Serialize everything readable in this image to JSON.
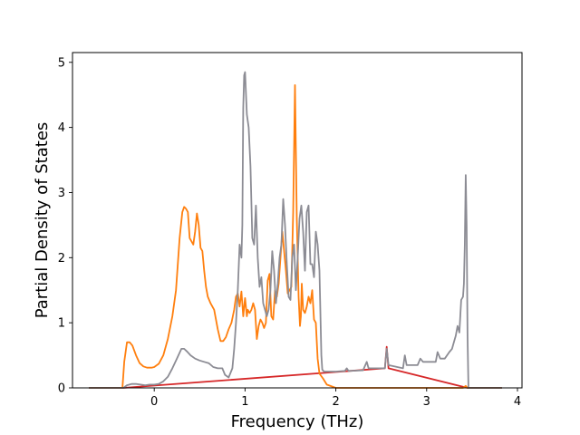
{
  "chart_data": {
    "type": "line",
    "xlabel": "Frequency (THz)",
    "ylabel": "Partial Density of States",
    "xlim": [
      -0.9,
      4.05
    ],
    "ylim": [
      0,
      5.15
    ],
    "xticks": [
      0,
      1,
      2,
      3,
      4
    ],
    "yticks": [
      0,
      1,
      2,
      3,
      4,
      5
    ],
    "grid": false,
    "legend": "none",
    "series": [
      {
        "color": "#d62728",
        "x": [
          -0.72,
          -0.34,
          2.54,
          2.56,
          2.58,
          3.45,
          3.83
        ],
        "y": [
          0.0,
          0.0,
          0.3,
          0.63,
          0.3,
          0.0,
          0.0
        ]
      },
      {
        "color": "#ff7f0e",
        "x": [
          -0.72,
          -0.35,
          -0.33,
          -0.3,
          -0.27,
          -0.24,
          -0.2,
          -0.16,
          -0.12,
          -0.08,
          -0.03,
          0.0,
          0.05,
          0.1,
          0.15,
          0.2,
          0.24,
          0.28,
          0.31,
          0.33,
          0.35,
          0.37,
          0.39,
          0.41,
          0.43,
          0.45,
          0.47,
          0.49,
          0.51,
          0.53,
          0.55,
          0.57,
          0.59,
          0.62,
          0.66,
          0.7,
          0.73,
          0.76,
          0.79,
          0.82,
          0.85,
          0.88,
          0.9,
          0.92,
          0.94,
          0.96,
          0.98,
          1.0,
          1.02,
          1.03,
          1.05,
          1.07,
          1.09,
          1.11,
          1.13,
          1.15,
          1.17,
          1.19,
          1.21,
          1.23,
          1.25,
          1.27,
          1.29,
          1.31,
          1.33,
          1.35,
          1.37,
          1.39,
          1.41,
          1.43,
          1.45,
          1.47,
          1.49,
          1.51,
          1.53,
          1.55,
          1.57,
          1.59,
          1.605,
          1.615,
          1.625,
          1.64,
          1.66,
          1.68,
          1.7,
          1.72,
          1.74,
          1.76,
          1.78,
          1.8,
          1.82,
          1.84,
          1.86,
          1.9,
          2.0,
          3.4,
          3.43,
          3.45,
          3.83
        ],
        "y": [
          0.0,
          0.0,
          0.4,
          0.7,
          0.7,
          0.65,
          0.5,
          0.38,
          0.33,
          0.31,
          0.31,
          0.32,
          0.37,
          0.5,
          0.75,
          1.1,
          1.5,
          2.3,
          2.7,
          2.78,
          2.75,
          2.7,
          2.3,
          2.25,
          2.2,
          2.4,
          2.68,
          2.5,
          2.15,
          2.1,
          1.8,
          1.55,
          1.4,
          1.3,
          1.2,
          0.9,
          0.72,
          0.72,
          0.78,
          0.9,
          1.0,
          1.2,
          1.4,
          1.45,
          1.25,
          1.48,
          1.1,
          1.38,
          1.1,
          1.2,
          1.15,
          1.2,
          1.3,
          1.2,
          0.75,
          0.95,
          1.05,
          1.0,
          0.92,
          1.0,
          1.65,
          1.75,
          1.1,
          1.05,
          1.5,
          1.4,
          1.6,
          2.0,
          2.4,
          2.1,
          1.8,
          1.45,
          1.5,
          1.55,
          2.7,
          4.65,
          2.6,
          1.4,
          0.95,
          1.1,
          1.6,
          1.2,
          1.15,
          1.25,
          1.4,
          1.3,
          1.5,
          1.05,
          1.0,
          0.45,
          0.22,
          0.18,
          0.14,
          0.05,
          0.0,
          0.0,
          0.03,
          0.0,
          0.0
        ]
      },
      {
        "color": "#8c8c94",
        "x": [
          -0.72,
          -0.34,
          -0.3,
          -0.25,
          -0.2,
          -0.15,
          -0.1,
          -0.05,
          0.0,
          0.05,
          0.1,
          0.15,
          0.2,
          0.25,
          0.3,
          0.33,
          0.36,
          0.4,
          0.45,
          0.5,
          0.55,
          0.6,
          0.65,
          0.7,
          0.75,
          0.78,
          0.82,
          0.86,
          0.88,
          0.9,
          0.92,
          0.94,
          0.96,
          0.97,
          0.98,
          0.99,
          1.0,
          1.02,
          1.04,
          1.06,
          1.08,
          1.1,
          1.12,
          1.14,
          1.16,
          1.18,
          1.2,
          1.22,
          1.24,
          1.26,
          1.28,
          1.3,
          1.32,
          1.34,
          1.36,
          1.38,
          1.4,
          1.42,
          1.44,
          1.46,
          1.48,
          1.5,
          1.52,
          1.54,
          1.56,
          1.58,
          1.6,
          1.62,
          1.64,
          1.66,
          1.68,
          1.7,
          1.72,
          1.74,
          1.76,
          1.78,
          1.8,
          1.82,
          1.84,
          1.85,
          1.87,
          2.0,
          2.1,
          2.12,
          2.14,
          2.3,
          2.34,
          2.36,
          2.38,
          2.54,
          2.56,
          2.58,
          2.74,
          2.76,
          2.78,
          2.9,
          2.93,
          2.96,
          3.1,
          3.12,
          3.15,
          3.2,
          3.25,
          3.28,
          3.3,
          3.32,
          3.34,
          3.36,
          3.38,
          3.4,
          3.41,
          3.42,
          3.43,
          3.44,
          3.45,
          3.46,
          3.83
        ],
        "y": [
          0.0,
          0.0,
          0.04,
          0.06,
          0.06,
          0.05,
          0.04,
          0.05,
          0.05,
          0.06,
          0.1,
          0.17,
          0.3,
          0.45,
          0.6,
          0.6,
          0.56,
          0.5,
          0.45,
          0.42,
          0.4,
          0.38,
          0.32,
          0.3,
          0.3,
          0.2,
          0.16,
          0.3,
          0.6,
          1.0,
          1.5,
          2.2,
          2.0,
          2.5,
          4.3,
          4.8,
          4.85,
          4.2,
          4.0,
          3.4,
          2.3,
          2.2,
          2.8,
          2.0,
          1.55,
          1.7,
          1.3,
          1.2,
          1.1,
          1.2,
          1.5,
          2.1,
          1.8,
          1.3,
          1.6,
          2.0,
          2.2,
          2.9,
          2.5,
          1.9,
          1.4,
          1.35,
          2.0,
          2.2,
          1.5,
          2.0,
          2.6,
          2.8,
          2.4,
          1.8,
          2.7,
          2.8,
          1.9,
          1.9,
          1.7,
          2.4,
          2.2,
          1.8,
          0.5,
          0.28,
          0.25,
          0.25,
          0.26,
          0.3,
          0.26,
          0.27,
          0.4,
          0.3,
          0.3,
          0.3,
          0.6,
          0.35,
          0.3,
          0.5,
          0.35,
          0.35,
          0.45,
          0.4,
          0.4,
          0.55,
          0.45,
          0.45,
          0.55,
          0.6,
          0.7,
          0.8,
          0.95,
          0.85,
          1.35,
          1.4,
          1.6,
          2.2,
          3.27,
          2.5,
          0.8,
          0.0,
          0.0
        ]
      }
    ]
  }
}
